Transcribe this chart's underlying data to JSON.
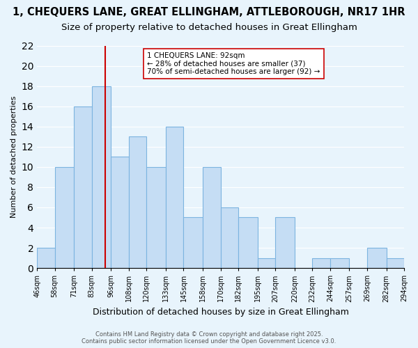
{
  "title_line1": "1, CHEQUERS LANE, GREAT ELLINGHAM, ATTLEBOROUGH, NR17 1HR",
  "title_line2": "Size of property relative to detached houses in Great Ellingham",
  "xlabel": "Distribution of detached houses by size in Great Ellingham",
  "ylabel": "Number of detached properties",
  "bar_edges": [
    46,
    58,
    71,
    83,
    96,
    108,
    120,
    133,
    145,
    158,
    170,
    182,
    195,
    207,
    220,
    232,
    244,
    257,
    269,
    282,
    294
  ],
  "bar_heights": [
    2,
    10,
    16,
    18,
    11,
    13,
    10,
    14,
    5,
    10,
    6,
    5,
    1,
    5,
    0,
    1,
    1,
    0,
    2,
    1
  ],
  "bar_color": "#c5ddf4",
  "bar_edge_color": "#7cb4e0",
  "reference_line_x": 92,
  "reference_line_color": "#cc0000",
  "annotation_line1": "1 CHEQUERS LANE: 92sqm",
  "annotation_line2": "← 28% of detached houses are smaller (37)",
  "annotation_line3": "70% of semi-detached houses are larger (92) →",
  "annotation_box_color": "#ffffff",
  "annotation_box_edge_color": "#cc0000",
  "ylim": [
    0,
    22
  ],
  "yticks": [
    0,
    2,
    4,
    6,
    8,
    10,
    12,
    14,
    16,
    18,
    20,
    22
  ],
  "background_color": "#e8f4fc",
  "plot_background_color": "#e8f4fc",
  "tick_labels": [
    "46sqm",
    "58sqm",
    "71sqm",
    "83sqm",
    "96sqm",
    "108sqm",
    "120sqm",
    "133sqm",
    "145sqm",
    "158sqm",
    "170sqm",
    "182sqm",
    "195sqm",
    "207sqm",
    "220sqm",
    "232sqm",
    "244sqm",
    "257sqm",
    "269sqm",
    "282sqm",
    "294sqm"
  ],
  "footer_text": "Contains HM Land Registry data © Crown copyright and database right 2025.\nContains public sector information licensed under the Open Government Licence v3.0.",
  "grid_color": "#ffffff",
  "title_fontsize": 10.5,
  "subtitle_fontsize": 9.5,
  "ylabel_fontsize": 8,
  "xlabel_fontsize": 9,
  "tick_fontsize": 7,
  "footer_fontsize": 6
}
